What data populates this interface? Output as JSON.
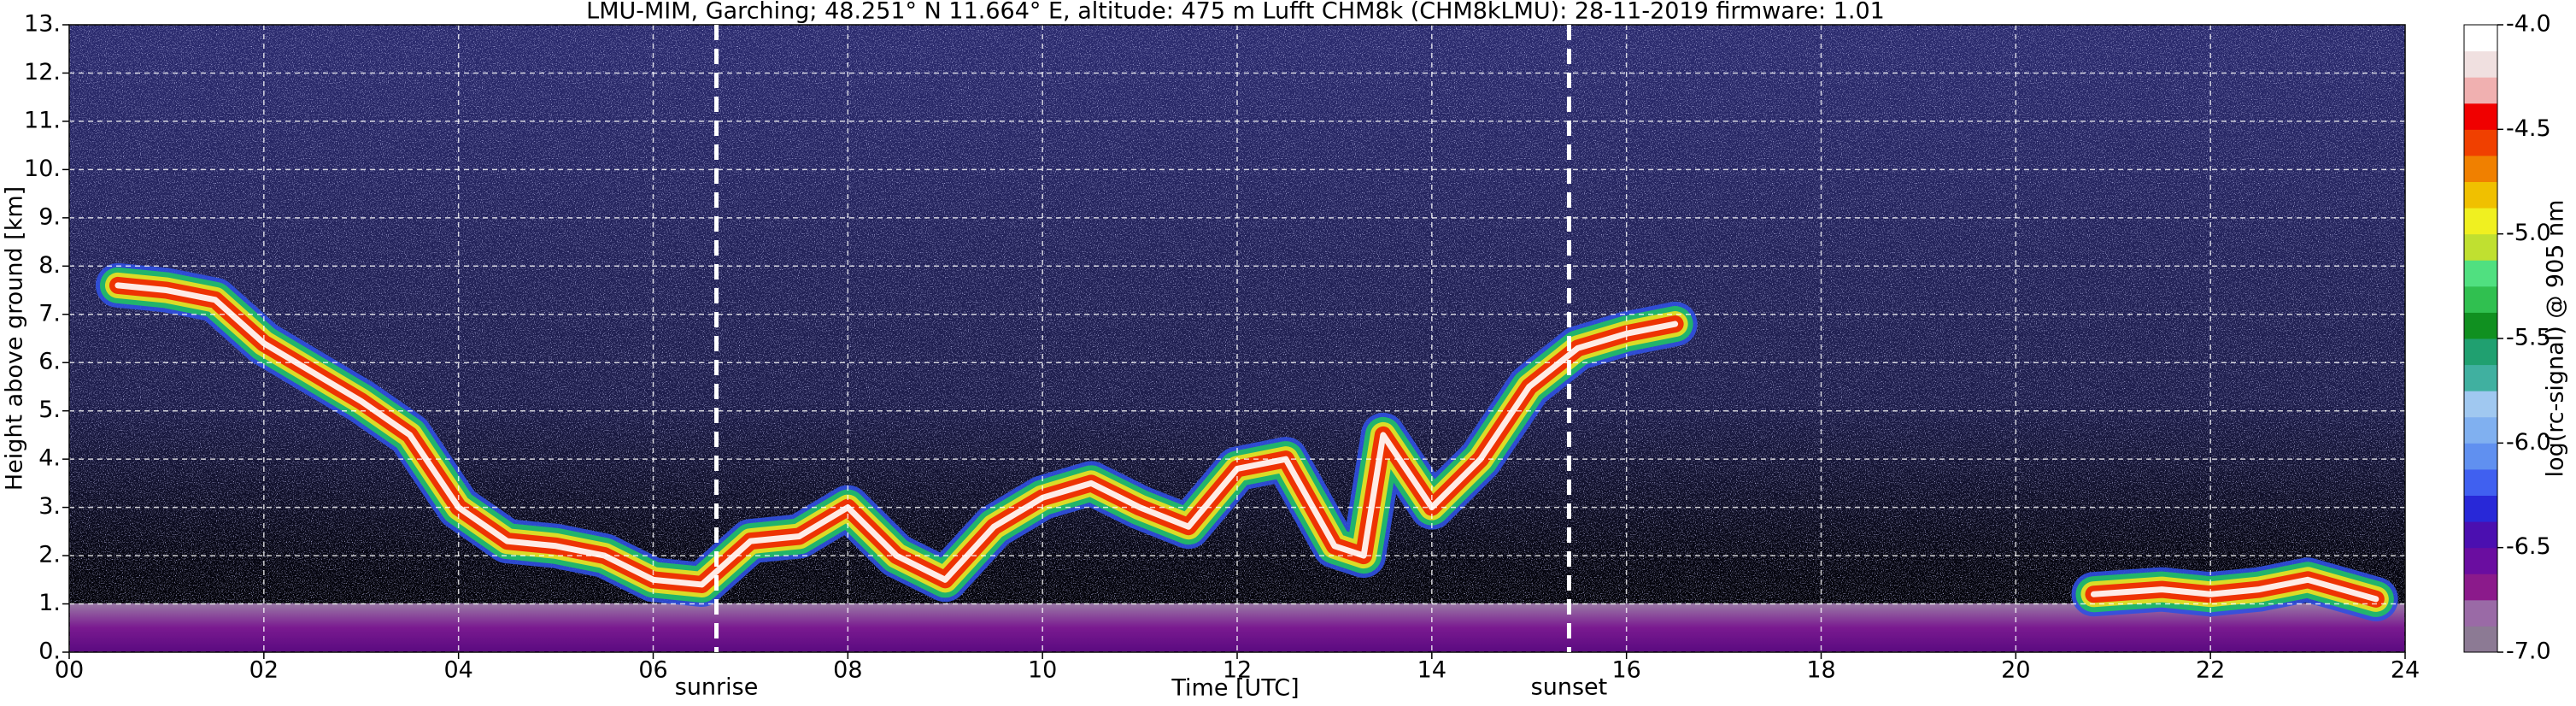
{
  "chart_data": {
    "type": "heatmap",
    "title": "LMU-MIM, Garching; 48.251° N 11.664° E, altitude: 475 m    Lufft CHM8k (CHM8kLMU): 28-11-2019    firmware: 1.01",
    "xlabel": "Time [UTC]",
    "ylabel": "Height above ground [km]",
    "colorbar_label": "log(rc-signal) @ 905 nm",
    "xlim": [
      0,
      24
    ],
    "xticks": [
      {
        "value": 0,
        "label": "00"
      },
      {
        "value": 2,
        "label": "02"
      },
      {
        "value": 4,
        "label": "04"
      },
      {
        "value": 6,
        "label": "06"
      },
      {
        "value": 8,
        "label": "08"
      },
      10,
      12,
      14,
      16,
      18,
      20,
      22,
      24
    ],
    "ylim": [
      0,
      13
    ],
    "yticks": [
      {
        "value": 0,
        "label": "0."
      },
      {
        "value": 1,
        "label": "1."
      },
      {
        "value": 2,
        "label": "2."
      },
      {
        "value": 3,
        "label": "3."
      },
      {
        "value": 4,
        "label": "4."
      },
      {
        "value": 5,
        "label": "5."
      },
      {
        "value": 6,
        "label": "6."
      },
      {
        "value": 7,
        "label": "7."
      },
      {
        "value": 8,
        "label": "8."
      },
      {
        "value": 9,
        "label": "9."
      },
      {
        "value": 10,
        "label": "10."
      },
      {
        "value": 11,
        "label": "11."
      },
      {
        "value": 12,
        "label": "12."
      },
      {
        "value": 13,
        "label": "13."
      }
    ],
    "clim": [
      -7,
      -4
    ],
    "cticks": [
      {
        "value": -4,
        "label": "-4.0"
      },
      -4.5,
      {
        "value": -5,
        "label": "-5.0"
      },
      -5.5,
      {
        "value": -6,
        "label": "-6.0"
      },
      -6.5,
      {
        "value": -7,
        "label": "-7.0"
      }
    ],
    "colormap": [
      "#8c7a94",
      "#9a6aa6",
      "#8b1a8b",
      "#6a0da0",
      "#4b0fb0",
      "#2828d8",
      "#4060f0",
      "#6090f0",
      "#80b0f0",
      "#a0c8f0",
      "#40b0a0",
      "#20a070",
      "#109020",
      "#30c050",
      "#50e080",
      "#c0e030",
      "#f0f020",
      "#f0c000",
      "#f08000",
      "#f04000",
      "#f00000",
      "#f0b0b0",
      "#f0e0e0",
      "#ffffff"
    ],
    "grid": true,
    "x": [
      0.5,
      1,
      1.5,
      2,
      2.5,
      3,
      3.5,
      4,
      4.5,
      5,
      5.5,
      6,
      6.5,
      7,
      7.5,
      8,
      8.5,
      9,
      9.5,
      10,
      10.5,
      11,
      11.5,
      12,
      12.5,
      13,
      13.3,
      13.5,
      14,
      14.5,
      15,
      15.5,
      16,
      16.5,
      18,
      20.8,
      21.5,
      22,
      22.5,
      23,
      23.7
    ],
    "values": [
      7.6,
      7.5,
      7.3,
      6.4,
      5.8,
      5.2,
      4.5,
      3.0,
      2.3,
      2.2,
      2.0,
      1.5,
      1.4,
      2.3,
      2.4,
      3.0,
      2.0,
      1.5,
      2.6,
      3.2,
      3.5,
      3.0,
      2.6,
      3.8,
      4.0,
      2.2,
      2.0,
      4.5,
      3.0,
      4.0,
      5.5,
      6.3,
      6.6,
      6.8,
      null,
      1.2,
      1.3,
      1.2,
      1.3,
      1.5,
      1.1
    ],
    "annotations": [
      {
        "label": "sunrise",
        "x": 6.65
      },
      {
        "label": "sunset",
        "x": 15.41
      }
    ]
  }
}
